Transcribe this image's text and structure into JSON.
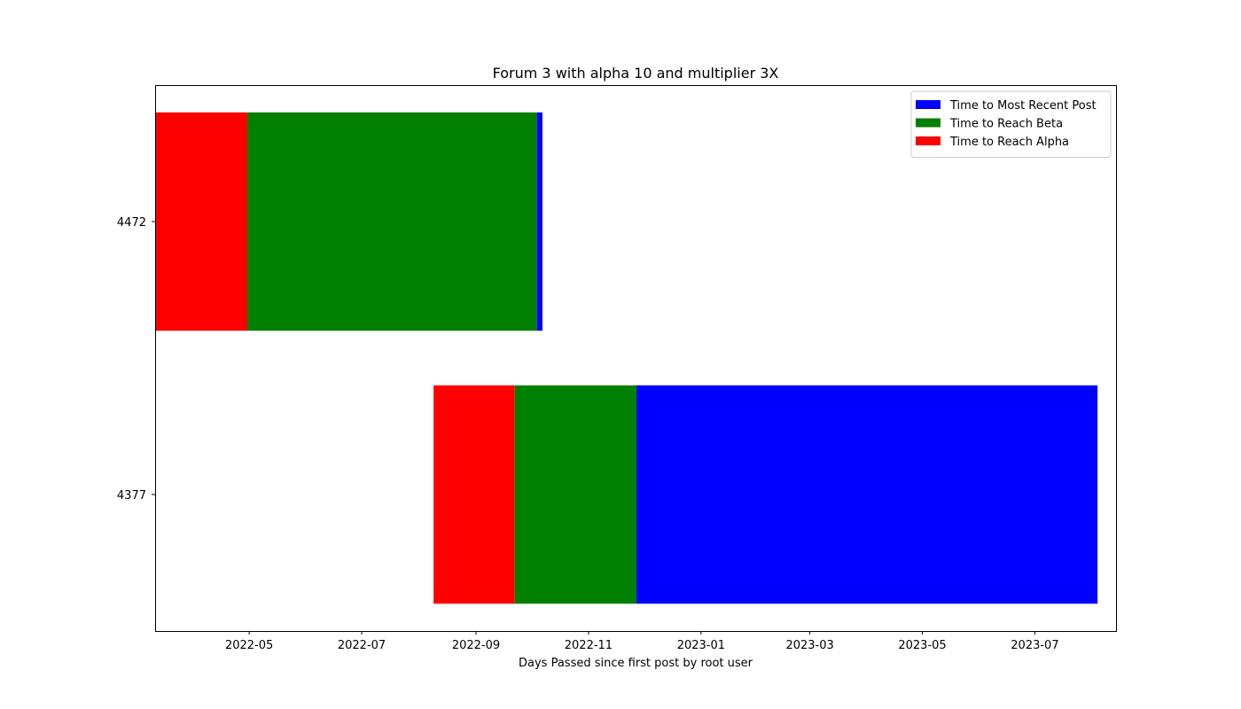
{
  "chart_data": {
    "type": "bar",
    "orientation": "horizontal",
    "stacked": true,
    "title": "Forum 3 with alpha 10 and multiplier 3X",
    "xlabel": "Days Passed since first post by root user",
    "ylabel": "",
    "x_axis_type": "date",
    "xlim": [
      "2022-03-11",
      "2023-08-14"
    ],
    "x_ticks": [
      "2022-05",
      "2022-07",
      "2022-09",
      "2022-11",
      "2023-01",
      "2023-03",
      "2023-05",
      "2023-07"
    ],
    "categories": [
      "4472",
      "4377"
    ],
    "series": [
      {
        "name": "Time to Reach Alpha",
        "color": "#ff0000",
        "segments": [
          {
            "category": "4472",
            "start": "2022-03-11",
            "end": "2022-04-30"
          },
          {
            "category": "4377",
            "start": "2022-08-09",
            "end": "2022-09-22"
          }
        ]
      },
      {
        "name": "Time to Reach Beta",
        "color": "#008000",
        "segments": [
          {
            "category": "4472",
            "start": "2022-04-30",
            "end": "2022-10-04"
          },
          {
            "category": "4377",
            "start": "2022-09-22",
            "end": "2022-11-27"
          }
        ]
      },
      {
        "name": "Time to Most Recent Post",
        "color": "#0000ff",
        "segments": [
          {
            "category": "4472",
            "start": "2022-10-04",
            "end": "2022-10-07"
          },
          {
            "category": "4377",
            "start": "2022-11-27",
            "end": "2023-08-04"
          }
        ]
      }
    ],
    "legend": {
      "location": "top-right",
      "entries": [
        {
          "label": "Time to Most Recent Post",
          "color": "#0000ff"
        },
        {
          "label": "Time to Reach Beta",
          "color": "#008000"
        },
        {
          "label": "Time to Reach Alpha",
          "color": "#ff0000"
        }
      ]
    },
    "grid": false
  }
}
